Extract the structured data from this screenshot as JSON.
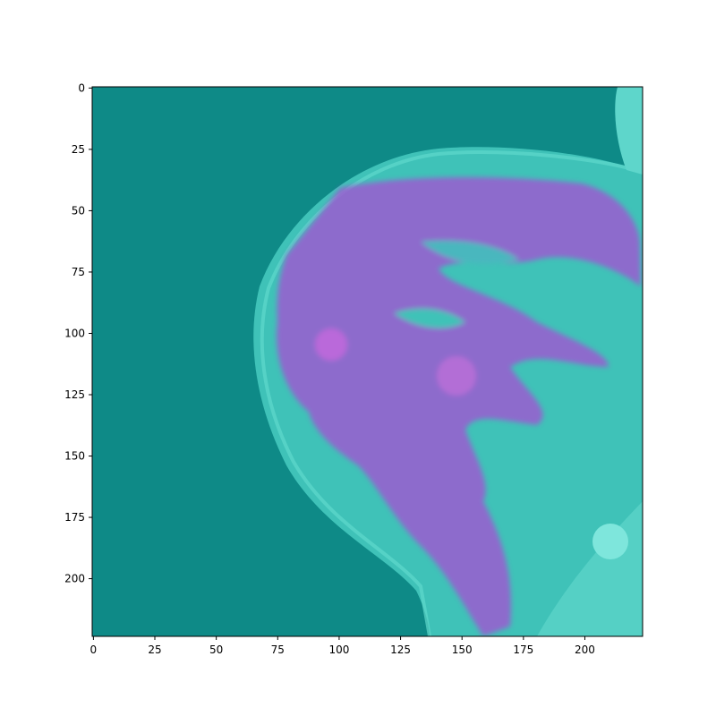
{
  "chart_data": {
    "type": "image",
    "xlim": [
      -0.5,
      223.5
    ],
    "ylim": [
      223.5,
      -0.5
    ],
    "xticks": [
      0,
      25,
      50,
      75,
      100,
      125,
      150,
      175,
      200
    ],
    "yticks": [
      0,
      25,
      50,
      75,
      100,
      125,
      150,
      175,
      200
    ]
  }
}
